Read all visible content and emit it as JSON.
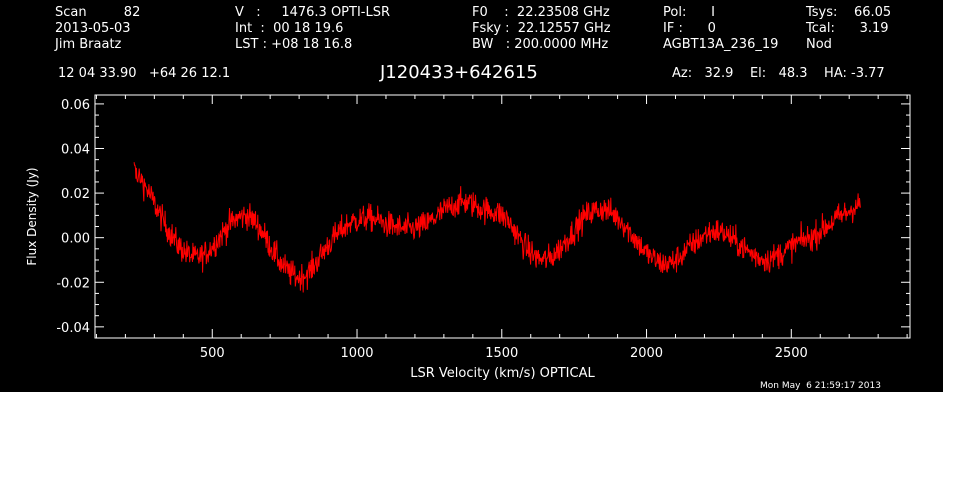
{
  "header": {
    "col1": {
      "l1": "Scan         82",
      "l2": "2013-05-03",
      "l3": "Jim Braatz"
    },
    "col2": {
      "l1": "V   :     1476.3 OPTI-LSR",
      "l2": "Int  :  00 18 19.6",
      "l3": "LST : +08 18 16.8"
    },
    "col3": {
      "l1": "F0    :  22.23508 GHz",
      "l2": "Fsky :  22.12557 GHz",
      "l3": "BW   : 200.0000 MHz"
    },
    "col4": {
      "l1": "Pol:      I",
      "l2": "IF :      0",
      "l3": "AGBT13A_236_19"
    },
    "col5": {
      "l1": "Tsys:    66.05",
      "l2": "Tcal:      3.19",
      "l3": "Nod"
    },
    "coords": "12 04 33.90   +64 26 12.1",
    "source": "J120433+642615",
    "pointing": "Az:   32.9    El:   48.3    HA: -3.77",
    "timestamp": "Mon May  6 21:59:17 2013"
  },
  "colors": {
    "background": "#000000",
    "axes": "#ffffff",
    "trace": "#ff0000"
  },
  "chart_data": {
    "type": "line",
    "xlabel": "LSR Velocity (km/s) OPTICAL",
    "ylabel": "Flux Density (Jy)",
    "xlim": [
      95,
      2910
    ],
    "ylim": [
      -0.045,
      0.064
    ],
    "xticks": [
      {
        "value": 500,
        "label": "500"
      },
      {
        "value": 1000,
        "label": "1000"
      },
      {
        "value": 1500,
        "label": "1500"
      },
      {
        "value": 2000,
        "label": "2000"
      },
      {
        "value": 2500,
        "label": "2500"
      }
    ],
    "yticks": [
      {
        "value": -0.04,
        "label": "-0.04"
      },
      {
        "value": -0.02,
        "label": "-0.02"
      },
      {
        "value": 0.0,
        "label": "0.00"
      },
      {
        "value": 0.02,
        "label": "0.02"
      },
      {
        "value": 0.04,
        "label": "0.04"
      },
      {
        "value": 0.06,
        "label": "0.06"
      }
    ],
    "grid": false,
    "legend": "none",
    "series": [
      {
        "x": [
          230,
          260,
          290,
          320,
          350,
          380,
          410,
          440,
          470,
          500,
          530,
          560,
          590,
          620,
          650,
          680,
          710,
          740,
          770,
          800,
          830,
          860,
          890,
          920,
          950,
          980,
          1010,
          1040,
          1070,
          1100,
          1130,
          1160,
          1190,
          1220,
          1250,
          1280,
          1310,
          1340,
          1370,
          1400,
          1430,
          1460,
          1490,
          1520,
          1550,
          1580,
          1610,
          1640,
          1670,
          1700,
          1730,
          1760,
          1790,
          1820,
          1850,
          1880,
          1910,
          1940,
          1970,
          2000,
          2030,
          2060,
          2090,
          2120,
          2150,
          2180,
          2210,
          2240,
          2270,
          2300,
          2330,
          2360,
          2390,
          2420,
          2450,
          2480,
          2510,
          2540,
          2570,
          2600,
          2630,
          2660,
          2690,
          2720,
          2740
        ],
        "y": [
          0.03,
          0.025,
          0.018,
          0.01,
          0.003,
          -0.003,
          -0.007,
          -0.009,
          -0.008,
          -0.004,
          0.001,
          0.006,
          0.009,
          0.01,
          0.007,
          0.001,
          -0.006,
          -0.012,
          -0.016,
          -0.018,
          -0.016,
          -0.011,
          -0.005,
          0.0,
          0.004,
          0.007,
          0.008,
          0.009,
          0.008,
          0.006,
          0.005,
          0.004,
          0.004,
          0.005,
          0.007,
          0.01,
          0.013,
          0.015,
          0.016,
          0.015,
          0.013,
          0.012,
          0.011,
          0.008,
          0.002,
          -0.004,
          -0.008,
          -0.01,
          -0.009,
          -0.005,
          0.0,
          0.005,
          0.01,
          0.012,
          0.013,
          0.011,
          0.008,
          0.003,
          -0.002,
          -0.007,
          -0.01,
          -0.012,
          -0.011,
          -0.008,
          -0.004,
          -0.001,
          0.002,
          0.003,
          0.002,
          -0.001,
          -0.004,
          -0.007,
          -0.009,
          -0.01,
          -0.008,
          -0.006,
          -0.003,
          -0.001,
          0.0,
          0.003,
          0.006,
          0.009,
          0.011,
          0.014,
          0.015
        ],
        "noise_amplitude": 0.009
      }
    ]
  }
}
